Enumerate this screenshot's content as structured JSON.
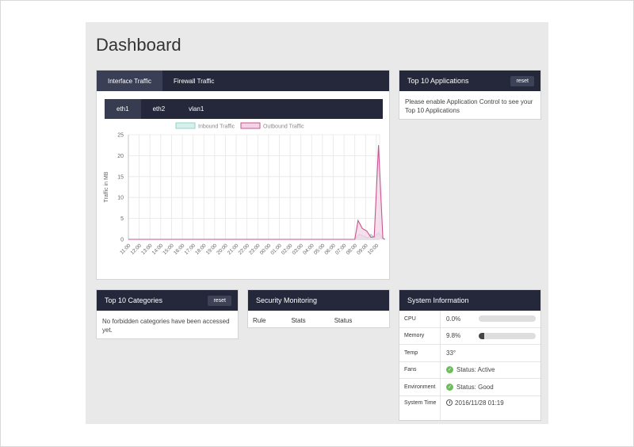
{
  "page": {
    "title": "Dashboard"
  },
  "traffic_panel": {
    "tabs": [
      {
        "label": "Interface Traffic",
        "active": true
      },
      {
        "label": "Firewall Traffic",
        "active": false
      }
    ],
    "subtabs": [
      {
        "label": "eth1",
        "active": true
      },
      {
        "label": "eth2",
        "active": false
      },
      {
        "label": "vlan1",
        "active": false
      }
    ]
  },
  "chart_data": {
    "type": "line",
    "ylabel": "Traffic in MB",
    "ylim": [
      0,
      25
    ],
    "yticks": [
      0,
      5,
      10,
      15,
      20,
      25
    ],
    "x": [
      "11:00",
      "12:00",
      "13:00",
      "14:00",
      "15:00",
      "16:00",
      "17:00",
      "18:00",
      "19:00",
      "20:00",
      "21:00",
      "22:00",
      "23:00",
      "00:00",
      "01:00",
      "02:00",
      "03:00",
      "04:00",
      "05:00",
      "06:00",
      "07:00",
      "08:00",
      "09:00",
      "10:00"
    ],
    "legend": [
      "Inbound Traffic",
      "Outbound Traffic"
    ],
    "legend_position": "top",
    "series": [
      {
        "name": "Inbound Traffic",
        "color": "#8fd5c8",
        "fill": "#d6f1ec",
        "points": [
          [
            0,
            0
          ],
          [
            20,
            0
          ],
          [
            21,
            0
          ],
          [
            21.4,
            1.2
          ],
          [
            21.7,
            0.9
          ],
          [
            22.2,
            0.3
          ],
          [
            22.5,
            1.2
          ],
          [
            22.8,
            0.4
          ],
          [
            23.2,
            1.6
          ],
          [
            23.6,
            0.2
          ],
          [
            23.8,
            0
          ]
        ]
      },
      {
        "name": "Outbound Traffic",
        "color": "#c9538f",
        "fill": "#f3d3e5",
        "points": [
          [
            0,
            0
          ],
          [
            20,
            0
          ],
          [
            21,
            0
          ],
          [
            21.3,
            4.5
          ],
          [
            21.7,
            2.6
          ],
          [
            22.1,
            2.0
          ],
          [
            22.5,
            0.5
          ],
          [
            22.8,
            0.6
          ],
          [
            23.2,
            22.5
          ],
          [
            23.6,
            0.2
          ],
          [
            23.8,
            0
          ]
        ]
      }
    ],
    "grid": true
  },
  "top_apps": {
    "title": "Top 10 Applications",
    "reset_label": "reset",
    "message": "Please enable Application Control to see your Top 10 Applications"
  },
  "top_categories": {
    "title": "Top 10 Categories",
    "reset_label": "reset",
    "message": "No forbidden categories have been accessed yet."
  },
  "security": {
    "title": "Security Monitoring",
    "columns": [
      "Rule",
      "Stats",
      "Status"
    ]
  },
  "system_info": {
    "title": "System Information",
    "cpu_label": "CPU",
    "cpu_value": "0.0%",
    "cpu_fraction": 0.0,
    "memory_label": "Memory",
    "memory_value": "9.8%",
    "memory_fraction": 0.098,
    "temp_label": "Temp",
    "temp_value": "33°",
    "fans_label": "Fans",
    "fans_value": "Status: Active",
    "env_label": "Environment",
    "env_value": "Status: Good",
    "time_label": "System Time",
    "time_value": "2016/11/28 01:19"
  }
}
